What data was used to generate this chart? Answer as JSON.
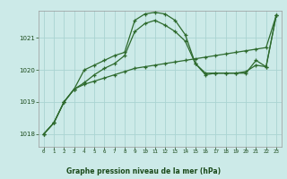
{
  "title": "Graphe pression niveau de la mer (hPa)",
  "bg_color": "#cceae8",
  "grid_color": "#aad4d2",
  "line_color": "#2d6a2d",
  "label_color": "#1a4a1a",
  "x_ticks": [
    0,
    1,
    2,
    3,
    4,
    5,
    6,
    7,
    8,
    9,
    10,
    11,
    12,
    13,
    14,
    15,
    16,
    17,
    18,
    19,
    20,
    21,
    22,
    23
  ],
  "ylim": [
    1017.6,
    1021.85
  ],
  "yticks": [
    1018,
    1019,
    1020,
    1021
  ],
  "line1_x": [
    0,
    1,
    2,
    3,
    4,
    5,
    6,
    7,
    8,
    9,
    10,
    11,
    12,
    13,
    14,
    15,
    16,
    17,
    18,
    19,
    20,
    21,
    22,
    23
  ],
  "line1_y": [
    1018.0,
    1018.35,
    1019.0,
    1019.4,
    1020.0,
    1020.15,
    1020.3,
    1020.45,
    1020.55,
    1021.55,
    1021.75,
    1021.8,
    1021.75,
    1021.55,
    1021.1,
    1020.2,
    1019.85,
    1019.9,
    1019.9,
    1019.9,
    1019.9,
    1020.3,
    1020.1,
    1021.7
  ],
  "line2_x": [
    0,
    1,
    2,
    3,
    4,
    5,
    6,
    7,
    8,
    9,
    10,
    11,
    12,
    13,
    14,
    15,
    16,
    17,
    18,
    19,
    20,
    21,
    22,
    23
  ],
  "line2_y": [
    1018.0,
    1018.35,
    1019.0,
    1019.4,
    1019.6,
    1019.85,
    1020.05,
    1020.2,
    1020.45,
    1021.2,
    1021.45,
    1021.55,
    1021.4,
    1021.2,
    1020.9,
    1020.2,
    1019.9,
    1019.9,
    1019.9,
    1019.9,
    1019.95,
    1020.15,
    1020.1,
    1021.7
  ],
  "line3_x": [
    0,
    1,
    2,
    3,
    4,
    5,
    6,
    7,
    8,
    9,
    10,
    11,
    12,
    13,
    14,
    15,
    16,
    17,
    18,
    19,
    20,
    21,
    22,
    23
  ],
  "line3_y": [
    1018.0,
    1018.35,
    1019.0,
    1019.4,
    1019.55,
    1019.65,
    1019.75,
    1019.85,
    1019.95,
    1020.05,
    1020.1,
    1020.15,
    1020.2,
    1020.25,
    1020.3,
    1020.35,
    1020.4,
    1020.45,
    1020.5,
    1020.55,
    1020.6,
    1020.65,
    1020.7,
    1021.7
  ]
}
